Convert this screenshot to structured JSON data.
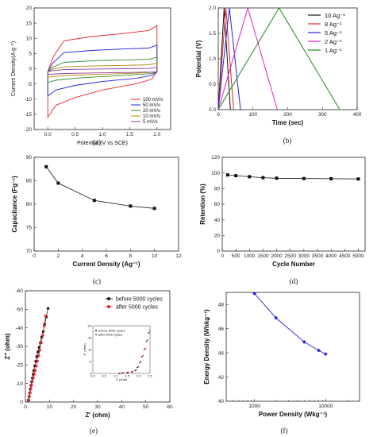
{
  "chart_data": [
    {
      "id": "a",
      "type": "line",
      "caption": "(a)",
      "xlabel": "Potential (V vs SCE)",
      "ylabel": "Current Density(A g⁻¹)",
      "xlim": [
        -0.25,
        2.25
      ],
      "ylim": [
        -20,
        20
      ],
      "xticks": [
        "0.0",
        "0.5",
        "1.0",
        "1.5",
        "2.0"
      ],
      "yticks": [
        "-20",
        "-15",
        "-10",
        "-5",
        "0",
        "5",
        "10",
        "15",
        "20"
      ],
      "legend_position": "bottom-right",
      "series": [
        {
          "name": "100 mV/s",
          "color": "#e8242b",
          "upper": [
            [
              0,
              -1
            ],
            [
              0.1,
              4
            ],
            [
              0.3,
              9.2
            ],
            [
              0.8,
              10.6
            ],
            [
              1.4,
              11.6
            ],
            [
              1.85,
              12.6
            ],
            [
              2.0,
              14.2
            ]
          ],
          "lower": [
            [
              2.0,
              -1
            ],
            [
              1.9,
              -3.5
            ],
            [
              1.6,
              -5
            ],
            [
              1.0,
              -7
            ],
            [
              0.5,
              -9.5
            ],
            [
              0.15,
              -12
            ],
            [
              0.0,
              -16
            ]
          ]
        },
        {
          "name": "50 mV/s",
          "color": "#2222dd",
          "upper": [
            [
              0,
              -1
            ],
            [
              0.1,
              2
            ],
            [
              0.3,
              5.3
            ],
            [
              0.8,
              6
            ],
            [
              1.4,
              6.5
            ],
            [
              1.85,
              6.8
            ],
            [
              2.0,
              7.8
            ]
          ],
          "lower": [
            [
              2.0,
              -1
            ],
            [
              1.9,
              -2.2
            ],
            [
              1.6,
              -3.2
            ],
            [
              1.0,
              -4.2
            ],
            [
              0.5,
              -5.5
            ],
            [
              0.15,
              -7
            ],
            [
              0.0,
              -9
            ]
          ]
        },
        {
          "name": "20 mV/s",
          "color": "#2a8a2a",
          "upper": [
            [
              0,
              -1
            ],
            [
              0.1,
              0.6
            ],
            [
              0.3,
              2.1
            ],
            [
              0.8,
              2.6
            ],
            [
              1.4,
              2.9
            ],
            [
              1.85,
              3.1
            ],
            [
              2.0,
              3.8
            ]
          ],
          "lower": [
            [
              2.0,
              -1
            ],
            [
              1.9,
              -1.6
            ],
            [
              1.6,
              -2
            ],
            [
              1.0,
              -2.6
            ],
            [
              0.5,
              -3.1
            ],
            [
              0.15,
              -3.8
            ],
            [
              0.0,
              -4.5
            ]
          ]
        },
        {
          "name": "10 mV/s",
          "color": "#b8860b",
          "upper": [
            [
              0,
              -1
            ],
            [
              0.1,
              -0.1
            ],
            [
              0.3,
              0.6
            ],
            [
              0.8,
              0.9
            ],
            [
              1.4,
              1.1
            ],
            [
              1.85,
              1.3
            ],
            [
              2.0,
              1.8
            ]
          ],
          "lower": [
            [
              2.0,
              -1
            ],
            [
              1.9,
              -1.2
            ],
            [
              1.6,
              -1.5
            ],
            [
              1.0,
              -1.8
            ],
            [
              0.5,
              -2.1
            ],
            [
              0.15,
              -2.5
            ],
            [
              0.0,
              -2.8
            ]
          ]
        },
        {
          "name": "5 mV/s",
          "color": "#8a3a9a",
          "upper": [
            [
              0,
              -1
            ],
            [
              0.1,
              -0.6
            ],
            [
              0.3,
              -0.3
            ],
            [
              0.8,
              -0.1
            ],
            [
              1.4,
              0
            ],
            [
              1.85,
              0.1
            ],
            [
              2.0,
              0.5
            ]
          ],
          "lower": [
            [
              2.0,
              -1
            ],
            [
              1.9,
              -1.1
            ],
            [
              1.6,
              -1.2
            ],
            [
              1.0,
              -1.35
            ],
            [
              0.5,
              -1.5
            ],
            [
              0.15,
              -1.7
            ],
            [
              0.0,
              -1.9
            ]
          ]
        }
      ]
    },
    {
      "id": "b",
      "type": "line",
      "caption": "(b)",
      "xlabel": "Time (sec)",
      "ylabel": "Potential (V)",
      "xlim": [
        0,
        400
      ],
      "ylim": [
        0,
        2.0
      ],
      "xticks": [
        "0",
        "100",
        "200",
        "300",
        "400"
      ],
      "yticks": [
        "0.0",
        "0.5",
        "1.0",
        "1.5",
        "2.0"
      ],
      "legend_position": "top-right",
      "series": [
        {
          "name": "10 Ag⁻¹",
          "color": "#111111",
          "points": [
            [
              0,
              0
            ],
            [
              17,
              2.0
            ],
            [
              35,
              0
            ]
          ]
        },
        {
          "name": "8 Ag⁻¹",
          "color": "#e8242b",
          "points": [
            [
              0,
              0
            ],
            [
              22,
              2.0
            ],
            [
              44,
              0
            ]
          ]
        },
        {
          "name": "5 Ag⁻¹",
          "color": "#2222dd",
          "points": [
            [
              0,
              0
            ],
            [
              32,
              2.0
            ],
            [
              64,
              0
            ]
          ]
        },
        {
          "name": "2 Ag⁻¹",
          "color": "#e020c0",
          "points": [
            [
              0,
              0
            ],
            [
              85,
              2.0
            ],
            [
              170,
              0
            ]
          ]
        },
        {
          "name": "1 Ag⁻¹",
          "color": "#1a8a1a",
          "points": [
            [
              0,
              0
            ],
            [
              175,
              2.0
            ],
            [
              350,
              0
            ]
          ]
        }
      ]
    },
    {
      "id": "c",
      "type": "line",
      "caption": "(c)",
      "xlabel": "Current Density (Ag⁻¹)",
      "ylabel": "Capacitance (Fg⁻¹)",
      "xlim": [
        0,
        12
      ],
      "ylim": [
        70,
        90
      ],
      "xticks": [
        "0",
        "2",
        "4",
        "6",
        "8",
        "10",
        "12"
      ],
      "yticks": [
        "70",
        "75",
        "80",
        "85",
        "90"
      ],
      "x": [
        1,
        2,
        5,
        8,
        10
      ],
      "values": [
        88,
        84.5,
        80.8,
        79.6,
        79.1
      ],
      "color": "#111111"
    },
    {
      "id": "d",
      "type": "line",
      "caption": "(d)",
      "xlabel": "Cycle Number",
      "ylabel": "Retention (%)",
      "xlim": [
        0,
        5250
      ],
      "ylim": [
        0,
        120
      ],
      "xticks": [
        "0",
        "500",
        "1000",
        "1500",
        "2000",
        "2500",
        "3000",
        "3500",
        "4000",
        "4500",
        "5000"
      ],
      "yticks": [
        "0",
        "20",
        "40",
        "60",
        "80",
        "100",
        "120"
      ],
      "x": [
        200,
        500,
        1000,
        1500,
        2000,
        3000,
        4000,
        5000
      ],
      "values": [
        97.5,
        96.5,
        95.2,
        94,
        93.3,
        92.8,
        92.6,
        92.3
      ],
      "color": "#111111"
    },
    {
      "id": "e",
      "type": "scatter",
      "caption": "(e)",
      "xlabel": "Z' (ohm)",
      "ylabel": "Z\" (ohm)",
      "xlim": [
        0,
        60
      ],
      "ylim": [
        0,
        -60
      ],
      "xticks": [
        "0",
        "10",
        "20",
        "30",
        "40",
        "50",
        "60"
      ],
      "yticks": [
        "0",
        "-10",
        "-20",
        "-30",
        "-40",
        "-50",
        "-60"
      ],
      "legend_position": "top-right",
      "series": [
        {
          "name": "before 5000 cycles",
          "color": "#111111",
          "x": [
            1.2,
            1.5,
            1.8,
            2.0,
            2.3,
            2.6,
            2.9,
            3.2,
            3.5,
            3.9,
            4.3,
            4.7,
            5.2,
            5.7,
            6.2,
            6.8,
            7.4,
            8.0,
            8.7,
            9.4
          ],
          "y": [
            -1,
            -3,
            -5,
            -7,
            -9,
            -11,
            -13,
            -15,
            -17,
            -19.5,
            -22,
            -24.5,
            -27,
            -29.5,
            -32,
            -35,
            -38,
            -42,
            -46,
            -50.5
          ]
        },
        {
          "name": "after 5000 cycles",
          "color": "#e8242b",
          "x": [
            1.5,
            1.7,
            2.0,
            2.3,
            2.6,
            2.9,
            3.3,
            3.7,
            4.1,
            4.5,
            5.0,
            5.5,
            6.0,
            6.6,
            7.2,
            7.8,
            8.4
          ],
          "y": [
            -1,
            -3,
            -5,
            -7,
            -9,
            -11,
            -13,
            -15,
            -17,
            -19.5,
            -22,
            -25,
            -28,
            -32,
            -36,
            -41,
            -46.5
          ]
        }
      ],
      "inset": {
        "xlabel": "Z' (ohm)",
        "ylabel": "Z\" (ohm)",
        "xlim": [
          0,
          2.5
        ],
        "ylim": [
          0,
          -20
        ],
        "xticks": [
          "0.0",
          "0.5",
          "1.0",
          "1.5",
          "2.0",
          "2.5"
        ],
        "yticks": [
          "0",
          "-5",
          "-10",
          "-15",
          "-20"
        ],
        "legend": [
          "before 5000 cycles",
          "after 5000 cycles"
        ]
      }
    },
    {
      "id": "f",
      "type": "line",
      "caption": "(f)",
      "xlabel": "Power Density (Wkg⁻¹)",
      "ylabel": "Energy Density (Whkg⁻¹)",
      "xscale": "log",
      "xlim": [
        400,
        30000
      ],
      "ylim": [
        40,
        49
      ],
      "xticks": [
        "1000",
        "10000"
      ],
      "yticks": [
        "40",
        "42",
        "44",
        "46",
        "48"
      ],
      "x": [
        1000,
        2000,
        5000,
        8000,
        10000
      ],
      "values": [
        48.9,
        46.9,
        44.9,
        44.2,
        43.9
      ],
      "color": "#2222dd"
    }
  ]
}
